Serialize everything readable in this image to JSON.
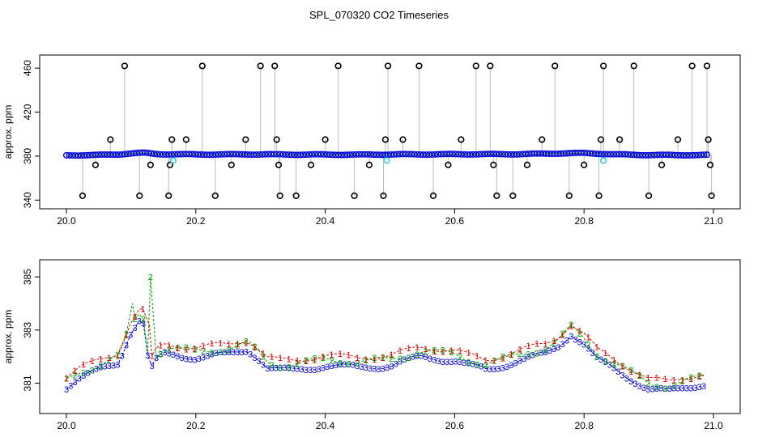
{
  "figure_title": "SPL_070320  CO2 Timeseries",
  "colors": {
    "black": "#000000",
    "blue": "#0000dd",
    "red": "#dd0000",
    "green": "#00aa00",
    "cyan": "#33ccdd",
    "grey": "#777777"
  },
  "chart_data": [
    {
      "type": "scatter",
      "title": "",
      "xlabel": "",
      "ylabel": "approx. ppm",
      "xlim": [
        20.0,
        21.0
      ],
      "ylim": [
        338,
        466
      ],
      "x_ticks": [
        20.0,
        20.2,
        20.4,
        20.6,
        20.8,
        21.0
      ],
      "x_tick_labels": [
        "20.0",
        "20.2",
        "20.4",
        "20.6",
        "20.8",
        "21.0"
      ],
      "y_ticks": [
        340,
        380,
        420,
        460
      ],
      "y_tick_labels": [
        "340",
        "380",
        "420",
        "460"
      ],
      "baseline": {
        "x": [
          20.0,
          20.05,
          20.08,
          20.1,
          20.12,
          20.14,
          20.2,
          20.3,
          20.35,
          20.45,
          20.5,
          20.6,
          20.7,
          20.8,
          20.85,
          20.9,
          20.95,
          20.99
        ],
        "y": [
          380.7,
          381.0,
          381.5,
          382.5,
          383.0,
          381.8,
          381.5,
          381.6,
          381.4,
          381.3,
          381.5,
          381.7,
          381.8,
          382.8,
          381.5,
          381.0,
          380.9,
          381.0
        ]
      },
      "outliers": {
        "x": [
          20.025,
          20.045,
          20.068,
          20.09,
          20.113,
          20.13,
          20.158,
          20.16,
          20.163,
          20.185,
          20.21,
          20.23,
          20.255,
          20.277,
          20.3,
          20.322,
          20.325,
          20.328,
          20.33,
          20.355,
          20.378,
          20.4,
          20.42,
          20.445,
          20.468,
          20.49,
          20.493,
          20.497,
          20.52,
          20.545,
          20.567,
          20.59,
          20.61,
          20.633,
          20.655,
          20.66,
          20.665,
          20.69,
          20.712,
          20.735,
          20.755,
          20.777,
          20.8,
          20.823,
          20.826,
          20.83,
          20.855,
          20.877,
          20.9,
          20.92,
          20.945,
          20.967,
          20.99,
          20.992,
          20.995,
          20.997
        ],
        "y": [
          344,
          372,
          395,
          462,
          344,
          372,
          344,
          372,
          395,
          395,
          462,
          344,
          372,
          395,
          462,
          462,
          395,
          372,
          344,
          344,
          372,
          395,
          462,
          344,
          372,
          344,
          395,
          462,
          395,
          462,
          344,
          372,
          395,
          462,
          462,
          372,
          344,
          344,
          372,
          395,
          462,
          344,
          372,
          344,
          395,
          462,
          395,
          462,
          344,
          372,
          395,
          462,
          462,
          395,
          372,
          344
        ]
      }
    },
    {
      "type": "scatter",
      "title": "",
      "xlabel": "",
      "ylabel": "approx. ppm",
      "xlim": [
        20.0,
        21.0
      ],
      "ylim": [
        380.1,
        385.4
      ],
      "x_ticks": [
        20.0,
        20.2,
        20.4,
        20.6,
        20.8,
        21.0
      ],
      "x_tick_labels": [
        "20.0",
        "20.2",
        "20.4",
        "20.6",
        "20.8",
        "21.0"
      ],
      "y_ticks": [
        381,
        383,
        385
      ],
      "y_tick_labels": [
        "381",
        "383",
        "385"
      ],
      "series": [
        {
          "name": "1",
          "marker": "1",
          "color": "red"
        },
        {
          "name": "2",
          "marker": "2",
          "color": "green"
        },
        {
          "name": "3",
          "marker": "3",
          "color": "blue"
        }
      ],
      "base_curve": {
        "x": [
          20.0,
          20.02,
          20.04,
          20.06,
          20.08,
          20.09,
          20.1,
          20.11,
          20.115,
          20.12,
          20.125,
          20.13,
          20.135,
          20.14,
          20.15,
          20.16,
          20.2,
          20.25,
          20.28,
          20.3,
          20.31,
          20.33,
          20.35,
          20.4,
          20.45,
          20.5,
          20.55,
          20.6,
          20.62,
          20.65,
          20.7,
          20.74,
          20.76,
          20.78,
          20.8,
          20.82,
          20.85,
          20.88,
          20.9,
          20.93,
          20.96,
          20.98
        ],
        "y": [
          381.0,
          381.3,
          381.5,
          381.7,
          381.9,
          382.5,
          383.1,
          383.4,
          383.6,
          383.3,
          382.2,
          381.5,
          381.9,
          382.0,
          382.2,
          382.2,
          382.1,
          382.2,
          382.4,
          382.0,
          381.7,
          381.6,
          381.6,
          381.8,
          381.7,
          381.8,
          382.1,
          382.0,
          381.8,
          381.6,
          382.0,
          382.2,
          382.5,
          383.0,
          382.6,
          382.0,
          381.6,
          381.2,
          380.9,
          380.8,
          381.0,
          381.1
        ]
      },
      "spikes": [
        {
          "x": 20.102,
          "series": "2",
          "y": 384.0
        },
        {
          "x": 20.118,
          "series": "1",
          "y": 383.8
        },
        {
          "x": 20.13,
          "series": "2",
          "y": 385.0
        },
        {
          "x": 20.128,
          "series": "1",
          "y": 383.2
        }
      ]
    }
  ]
}
